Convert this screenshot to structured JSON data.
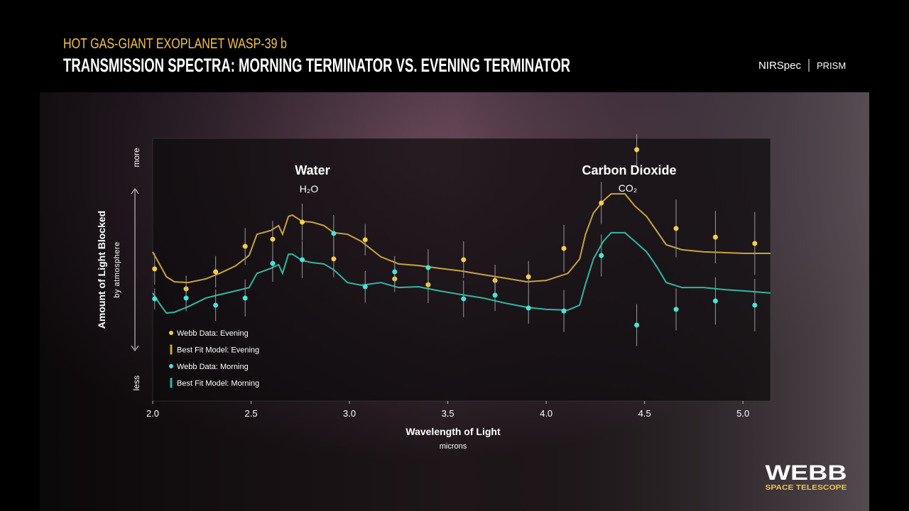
{
  "header": {
    "kicker": "HOT GAS-GIANT EXOPLANET WASP-39 b",
    "title": "TRANSMISSION SPECTRA: MORNING TERMINATOR VS. EVENING TERMINATOR",
    "instrument": "NIRSpec",
    "mode": "PRISM"
  },
  "logo": {
    "name": "WEBB",
    "subtitle": "SPACE TELESCOPE"
  },
  "chart_data": {
    "type": "line",
    "xlabel": "Wavelength of Light",
    "xlabel_sub": "microns",
    "ylabel": "Amount of Light Blocked",
    "ylabel_sub": "by atmosphere",
    "annotations": [
      {
        "text": "Water",
        "sub": "H₂O"
      },
      {
        "text": "Carbon Dioxide",
        "sub": "CO₂"
      }
    ],
    "xlim": [
      2.0,
      5.14
    ],
    "xticks": [
      {
        "value": 2,
        "label": "2.0"
      },
      2.5,
      {
        "value": 3,
        "label": "3.0"
      },
      3.5,
      {
        "value": 4,
        "label": "4.0"
      },
      4.5,
      {
        "value": 5,
        "label": "5.0"
      }
    ],
    "ylim": [
      0,
      100
    ],
    "yticks": [
      {
        "value": 92.7,
        "label": "more"
      },
      {
        "value": 6.8,
        "label": "less"
      }
    ],
    "legend": "lower left",
    "x": [
      2.01,
      2.17,
      2.32,
      2.47,
      2.61,
      2.76,
      2.92,
      3.08,
      3.23,
      3.4,
      3.58,
      3.74,
      3.91,
      4.09,
      4.28,
      4.46,
      4.66,
      4.86,
      5.06
    ],
    "series": [
      {
        "name": "Webb Data: Evening",
        "kind": "points",
        "color": "#f6cf45",
        "values": [
          50.3,
          42.7,
          49.2,
          58.9,
          61.6,
          68.1,
          54.1,
          61.4,
          46.5,
          44.3,
          53.8,
          45.9,
          47.3,
          58.1,
          75.4,
          95.7,
          65.7,
          62.4,
          60.0
        ],
        "errors": [
          6,
          5,
          6,
          7,
          7,
          7,
          7,
          6,
          5,
          7,
          7,
          6,
          6,
          9,
          8,
          6,
          11,
          10,
          12
        ]
      },
      {
        "name": "Best Fit Model: Evening",
        "kind": "line",
        "color": "#c8a440",
        "x": [
          2.0,
          2.04,
          2.07,
          2.11,
          2.18,
          2.27,
          2.34,
          2.42,
          2.49,
          2.53,
          2.6,
          2.64,
          2.66,
          2.69,
          2.71,
          2.76,
          2.81,
          2.87,
          2.92,
          2.99,
          3.06,
          3.16,
          3.25,
          3.35,
          3.46,
          3.57,
          3.68,
          3.79,
          3.9,
          4.0,
          4.11,
          4.17,
          4.2,
          4.24,
          4.29,
          4.33,
          4.4,
          4.45,
          4.51,
          4.56,
          4.61,
          4.69,
          4.8,
          4.91,
          5.01,
          5.14
        ],
        "values": [
          56.8,
          51.4,
          47.3,
          45.4,
          45.1,
          46.5,
          48.6,
          51.4,
          55.4,
          63.5,
          64.9,
          66.8,
          63.5,
          70.3,
          70.8,
          68.4,
          68.1,
          66.8,
          64.1,
          63.5,
          60.8,
          54.9,
          52.2,
          51.6,
          50.5,
          49.5,
          48.1,
          46.8,
          45.4,
          45.9,
          48.6,
          54.1,
          63.5,
          71.6,
          76.2,
          78.9,
          78.9,
          74.3,
          70.3,
          64.9,
          59.5,
          57.6,
          56.8,
          56.5,
          56.2,
          56.2
        ]
      },
      {
        "name": "Webb Data: Morning",
        "kind": "points",
        "color": "#45e6d6",
        "values": [
          38.9,
          39.2,
          36.5,
          39.2,
          52.4,
          53.8,
          63.8,
          43.5,
          49.2,
          50.8,
          38.9,
          40.3,
          35.4,
          34.3,
          55.4,
          28.9,
          34.9,
          38.1,
          36.5
        ],
        "errors": [
          4,
          5,
          6,
          7,
          7,
          7,
          7,
          6,
          6,
          7,
          7,
          6,
          6,
          8,
          8,
          8,
          8,
          9,
          10
        ]
      },
      {
        "name": "Best Fit Model: Morning",
        "kind": "line",
        "color": "#2fb8a4",
        "x": [
          2.0,
          2.04,
          2.07,
          2.11,
          2.18,
          2.27,
          2.34,
          2.42,
          2.49,
          2.53,
          2.6,
          2.64,
          2.66,
          2.69,
          2.71,
          2.76,
          2.81,
          2.87,
          2.92,
          2.99,
          3.06,
          3.16,
          3.25,
          3.35,
          3.46,
          3.57,
          3.68,
          3.79,
          3.9,
          4.0,
          4.11,
          4.17,
          4.2,
          4.24,
          4.29,
          4.33,
          4.4,
          4.45,
          4.51,
          4.56,
          4.61,
          4.69,
          4.8,
          4.91,
          5.01,
          5.14
        ],
        "values": [
          41.1,
          36.5,
          33.5,
          33.8,
          35.9,
          39.2,
          40.5,
          41.9,
          43.2,
          48.6,
          50.5,
          51.9,
          48.6,
          55.9,
          55.9,
          53.5,
          52.7,
          52.2,
          50.0,
          45.1,
          44.1,
          45.1,
          43.2,
          43.5,
          41.9,
          40.5,
          39.2,
          37.3,
          35.7,
          34.9,
          34.6,
          36.5,
          44.6,
          54.1,
          60.8,
          64.1,
          64.1,
          60.8,
          56.8,
          51.4,
          45.1,
          43.2,
          43.2,
          42.4,
          41.9,
          41.1
        ]
      }
    ]
  }
}
